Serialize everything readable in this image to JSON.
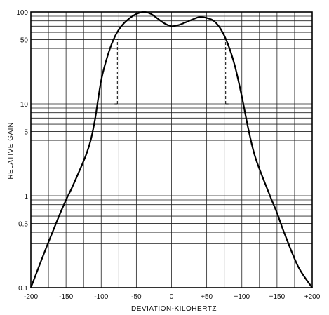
{
  "chart_data": {
    "type": "line",
    "xlabel": "DEVIATION-KILOHERTZ",
    "ylabel": "RELATIVE GAIN",
    "xlim": [
      -200,
      200
    ],
    "ylim": [
      0.1,
      100
    ],
    "y_scale": "log",
    "grid": true,
    "x_ticks": [
      "-200",
      "-150",
      "-100",
      "-50",
      "0",
      "+50",
      "+100",
      "+150",
      "+200"
    ],
    "y_ticks": [
      {
        "value": 100,
        "label": "100"
      },
      {
        "value": 50,
        "label": "50"
      },
      {
        "value": 10,
        "label": "10"
      },
      {
        "value": 5,
        "label": "5"
      },
      {
        "value": 1,
        "label": "1"
      },
      {
        "value": 0.5,
        "label": "0.5"
      },
      {
        "value": 0.1,
        "label": "0.1"
      }
    ],
    "series": [
      {
        "x": [
          -200,
          -180,
          -160,
          -150,
          -140,
          -120,
          -110,
          -100,
          -90,
          -80,
          -70,
          -60,
          -50,
          -40,
          -30,
          -20,
          -10,
          0,
          10,
          20,
          30,
          40,
          50,
          60,
          70,
          80,
          90,
          100,
          110,
          120,
          140,
          150,
          160,
          180,
          200
        ],
        "y": [
          0.1,
          0.25,
          0.6,
          0.9,
          1.3,
          3,
          6,
          18,
          35,
          55,
          72,
          85,
          95,
          100,
          96,
          85,
          75,
          70,
          72,
          77,
          83,
          88,
          86,
          80,
          65,
          45,
          26,
          12,
          5,
          2.5,
          1,
          0.65,
          0.4,
          0.17,
          0.1
        ]
      }
    ],
    "reference_lines": [
      {
        "x": -77,
        "y_from": 10,
        "y_to": 50,
        "style": "dashed"
      },
      {
        "x": 77,
        "y_from": 10,
        "y_to": 50,
        "style": "dashed"
      }
    ]
  }
}
